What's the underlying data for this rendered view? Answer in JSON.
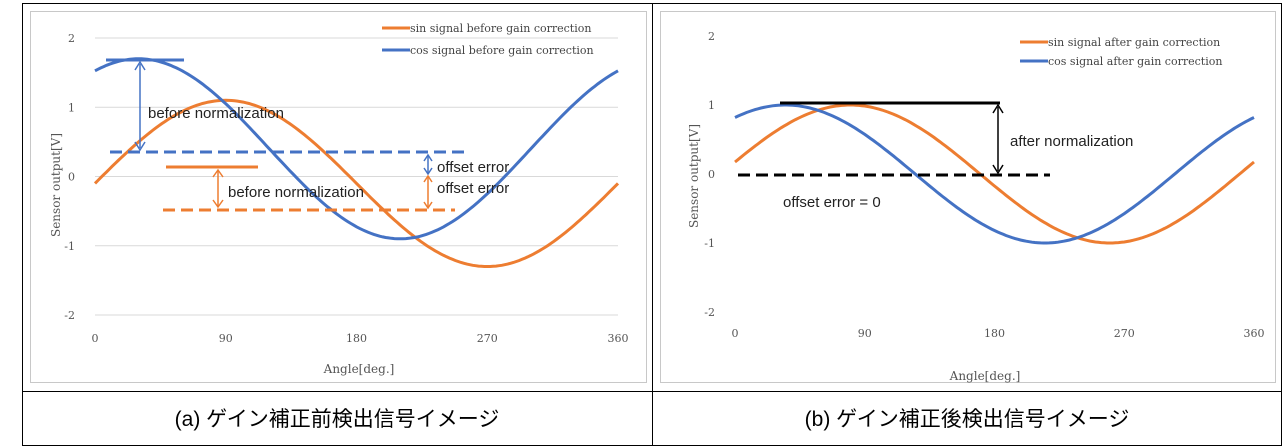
{
  "captions": {
    "a": "(a)  ゲイン補正前検出信号イメージ",
    "b": "(b)  ゲイン補正後検出信号イメージ"
  },
  "colors": {
    "sin": "#ed7d31",
    "cos": "#4472c4",
    "black": "#000000",
    "grid": "#d9d9d9"
  },
  "chart_data": [
    {
      "type": "line",
      "title": "",
      "xlabel": "Angle[deg.]",
      "ylabel": "Sensor output[V]",
      "xlim": [
        0,
        360
      ],
      "ylim": [
        -2,
        2
      ],
      "xticks": [
        0,
        90,
        180,
        270,
        360
      ],
      "yticks": [
        -2,
        -1,
        0,
        1,
        2
      ],
      "grid": "horizontal",
      "legend_position": "top-right",
      "series": [
        {
          "name": "sin signal before gain correction",
          "color": "#ed7d31",
          "amplitude": 1.2,
          "offset": -0.1,
          "phase_deg": 0,
          "peak": {
            "x": 90,
            "y": 1.1
          }
        },
        {
          "name": "cos signal before gain correction",
          "color": "#4472c4",
          "amplitude": 1.3,
          "offset": 0.4,
          "phase_deg": 0,
          "peak": {
            "x": 30,
            "y": 1.7
          }
        }
      ],
      "annotations": [
        {
          "text": "before normalization",
          "series": "cos"
        },
        {
          "text": "before normalization",
          "series": "sin"
        },
        {
          "text": "offset error",
          "series": "cos"
        },
        {
          "text": "offset error",
          "series": "sin"
        }
      ]
    },
    {
      "type": "line",
      "title": "",
      "xlabel": "Angle[deg.]",
      "ylabel": "Sensor output[V]",
      "xlim": [
        0,
        360
      ],
      "ylim": [
        -2,
        2
      ],
      "xticks": [
        0,
        90,
        180,
        270,
        360
      ],
      "yticks": [
        -2,
        -1,
        0,
        1,
        2
      ],
      "grid": "off",
      "legend_position": "top-right",
      "series": [
        {
          "name": "sin signal after gain correction",
          "color": "#ed7d31",
          "amplitude": 1.0,
          "offset": 0,
          "phase_deg": 0,
          "peak": {
            "x": 80,
            "y": 1.0
          }
        },
        {
          "name": "cos signal after gain correction",
          "color": "#4472c4",
          "amplitude": 1.0,
          "offset": 0,
          "phase_deg": 0,
          "peak": {
            "x": 35,
            "y": 1.0
          }
        }
      ],
      "annotations": [
        {
          "text": "after normalization"
        },
        {
          "text": "offset error = 0"
        }
      ]
    }
  ]
}
